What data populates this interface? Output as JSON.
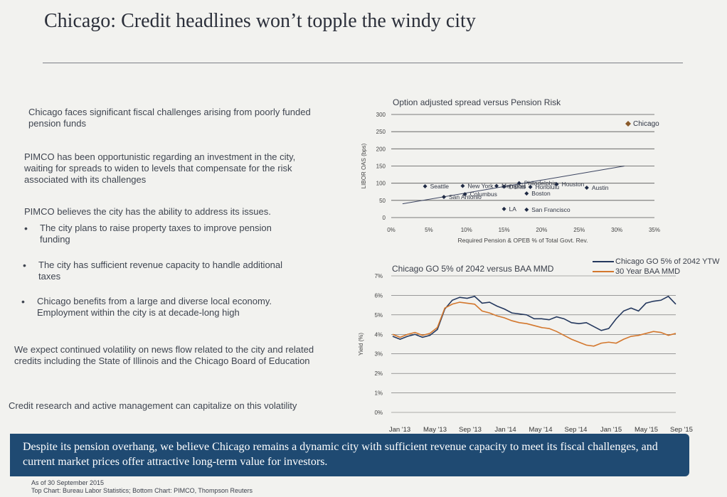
{
  "page": {
    "title": "Chicago: Credit headlines won’t topple the windy city",
    "paragraphs": [
      "Chicago faces significant fiscal challenges arising from poorly funded pension funds",
      "PIMCO has been opportunistic regarding an investment in the city, waiting for spreads to widen to levels that compensate for the risk associated with its challenges",
      "PIMCO believes the city has the ability to address its issues."
    ],
    "bullets": [
      "The city plans to raise property taxes to improve pension funding",
      "The city has sufficient revenue capacity to handle additional taxes",
      "Chicago benefits from a large and diverse local economy. Employment within the city is at decade-long high"
    ],
    "closing": [
      "We expect continued volatility on news flow related to the city and related credits including the State of Illinois and the Chicago Board of Education",
      "Credit research and active management can capitalize on this volatility"
    ],
    "banner": "Despite its pension overhang, we believe Chicago remains a dynamic city with sufficient revenue capacity to meet its fiscal challenges, and current market prices offer attractive long-term value for investors.",
    "footnote_date": "As of 30 September 2015",
    "footnote_source": "Top Chart: Bureau Labor Statistics; Bottom Chart: PIMCO, Thompson Reuters"
  },
  "chart_data": [
    {
      "type": "scatter",
      "title": "Option adjusted spread versus Pension Risk",
      "xlabel": "Required Pension & OPEB % of Total Govt. Rev.",
      "ylabel": "LIBOR OAS (bps)",
      "xlim": [
        0,
        35
      ],
      "ylim": [
        0,
        300
      ],
      "x_ticks": [
        "0%",
        "5%",
        "10%",
        "15%",
        "20%",
        "25%",
        "30%",
        "35%"
      ],
      "y_ticks": [
        "0",
        "50",
        "100",
        "150",
        "200",
        "250",
        "300"
      ],
      "grid": true,
      "trendline": [
        [
          1.5,
          40
        ],
        [
          31,
          150
        ]
      ],
      "points": [
        {
          "label": "Chicago",
          "x": 31.5,
          "y": 273
        },
        {
          "label": "Seattle",
          "x": 4.5,
          "y": 91
        },
        {
          "label": "New York",
          "x": 9.5,
          "y": 92
        },
        {
          "label": "Columbus",
          "x": 9.8,
          "y": 68
        },
        {
          "label": "San Antonio",
          "x": 7.0,
          "y": 60
        },
        {
          "label": "Philadelphia",
          "x": 17.0,
          "y": 100
        },
        {
          "label": "Memphis",
          "x": 14.0,
          "y": 92
        },
        {
          "label": "Dallas",
          "x": 15.0,
          "y": 90
        },
        {
          "label": "Houston",
          "x": 22.0,
          "y": 97
        },
        {
          "label": "Honolulu",
          "x": 18.5,
          "y": 89
        },
        {
          "label": "Boston",
          "x": 18.0,
          "y": 70
        },
        {
          "label": "Austin",
          "x": 26.0,
          "y": 87
        },
        {
          "label": "LA",
          "x": 15.0,
          "y": 25
        },
        {
          "label": "San Francisco",
          "x": 18.0,
          "y": 23
        }
      ]
    },
    {
      "type": "line",
      "title": "Chicago GO 5% of 2042 versus BAA MMD",
      "ylabel": "Yield (%)",
      "ylim": [
        0,
        7
      ],
      "y_ticks": [
        "0%",
        "1%",
        "2%",
        "3%",
        "4%",
        "5%",
        "6%",
        "7%"
      ],
      "x_ticks": [
        "Jan '13",
        "May '13",
        "Sep '13",
        "Jan '14",
        "May '14",
        "Sep '14",
        "Jan '15",
        "May '15",
        "Sep '15"
      ],
      "legend_position": "top-right",
      "series": [
        {
          "name": "Chicago GO 5% of 2042 YTW",
          "color": "#24385e",
          "values": [
            3.9,
            3.75,
            3.9,
            4.0,
            3.85,
            3.95,
            4.25,
            5.3,
            5.75,
            5.9,
            5.85,
            5.95,
            5.6,
            5.65,
            5.45,
            5.3,
            5.1,
            5.05,
            5.0,
            4.8,
            4.8,
            4.75,
            4.9,
            4.8,
            4.6,
            4.55,
            4.6,
            4.4,
            4.2,
            4.3,
            4.8,
            5.2,
            5.35,
            5.2,
            5.6,
            5.7,
            5.75,
            5.95,
            5.55
          ]
        },
        {
          "name": "30 Year BAA MMD",
          "color": "#d3772d",
          "values": [
            4.0,
            3.85,
            4.0,
            4.1,
            3.95,
            4.05,
            4.35,
            5.35,
            5.55,
            5.65,
            5.6,
            5.55,
            5.2,
            5.1,
            4.95,
            4.85,
            4.7,
            4.6,
            4.55,
            4.45,
            4.35,
            4.3,
            4.15,
            3.95,
            3.75,
            3.6,
            3.45,
            3.4,
            3.55,
            3.6,
            3.55,
            3.75,
            3.9,
            3.95,
            4.05,
            4.15,
            4.1,
            3.95,
            4.05
          ]
        }
      ]
    }
  ]
}
